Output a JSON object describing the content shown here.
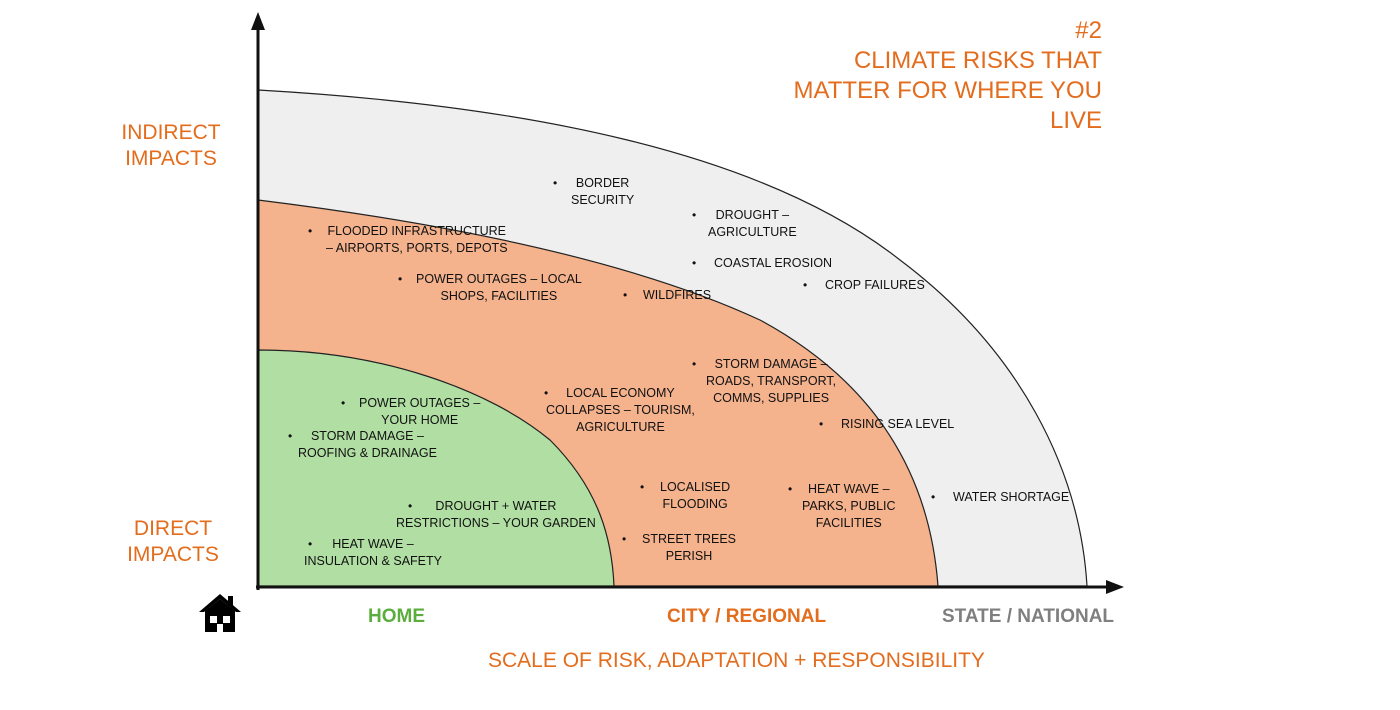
{
  "title": [
    "#2",
    "CLIMATE RISKS THAT",
    "MATTER FOR WHERE YOU",
    "LIVE"
  ],
  "y_axis": {
    "top_label": [
      "INDIRECT",
      "IMPACTS"
    ],
    "bottom_label": [
      "DIRECT",
      "IMPACTS"
    ]
  },
  "x_axis": {
    "home_icon": "house-icon",
    "categories": [
      {
        "label": "HOME",
        "color": "#5BAE3E"
      },
      {
        "label": "CITY / REGIONAL",
        "color": "#E36C1D"
      },
      {
        "label": "STATE / NATIONAL",
        "color": "#7F7F7F"
      }
    ],
    "footer": "SCALE OF RISK, ADAPTATION + RESPONSIBILITY"
  },
  "zones": {
    "home_fill": "#B1DFA3",
    "city_fill": "#F4B28D",
    "state_fill": "#EFEFEF"
  },
  "risks": {
    "home": [
      [
        "POWER OUTAGES –",
        "YOUR HOME"
      ],
      [
        "STORM DAMAGE –",
        "ROOFING & DRAINAGE"
      ],
      [
        "DROUGHT + WATER",
        "RESTRICTIONS – YOUR GARDEN"
      ],
      [
        "HEAT WAVE –",
        "INSULATION & SAFETY"
      ]
    ],
    "city": [
      [
        "FLOODED INFRASTRUCTURE",
        "– AIRPORTS, PORTS, DEPOTS"
      ],
      [
        "POWER OUTAGES – LOCAL",
        "SHOPS, FACILITIES"
      ],
      [
        "WILDFIRES"
      ],
      [
        "STORM DAMAGE –",
        "ROADS, TRANSPORT,",
        "COMMS, SUPPLIES"
      ],
      [
        "LOCAL ECONOMY",
        "COLLAPSES – TOURISM,",
        "AGRICULTURE"
      ],
      [
        "LOCALISED",
        "FLOODING"
      ],
      [
        "HEAT WAVE –",
        "PARKS, PUBLIC",
        "FACILITIES"
      ],
      [
        "STREET TREES",
        "PERISH"
      ]
    ],
    "state": [
      [
        "BORDER",
        "SECURITY"
      ],
      [
        "DROUGHT –",
        "AGRICULTURE"
      ],
      [
        "COASTAL EROSION"
      ],
      [
        "CROP FAILURES"
      ],
      [
        "RISING SEA LEVEL"
      ],
      [
        "WATER SHORTAGE"
      ]
    ]
  }
}
